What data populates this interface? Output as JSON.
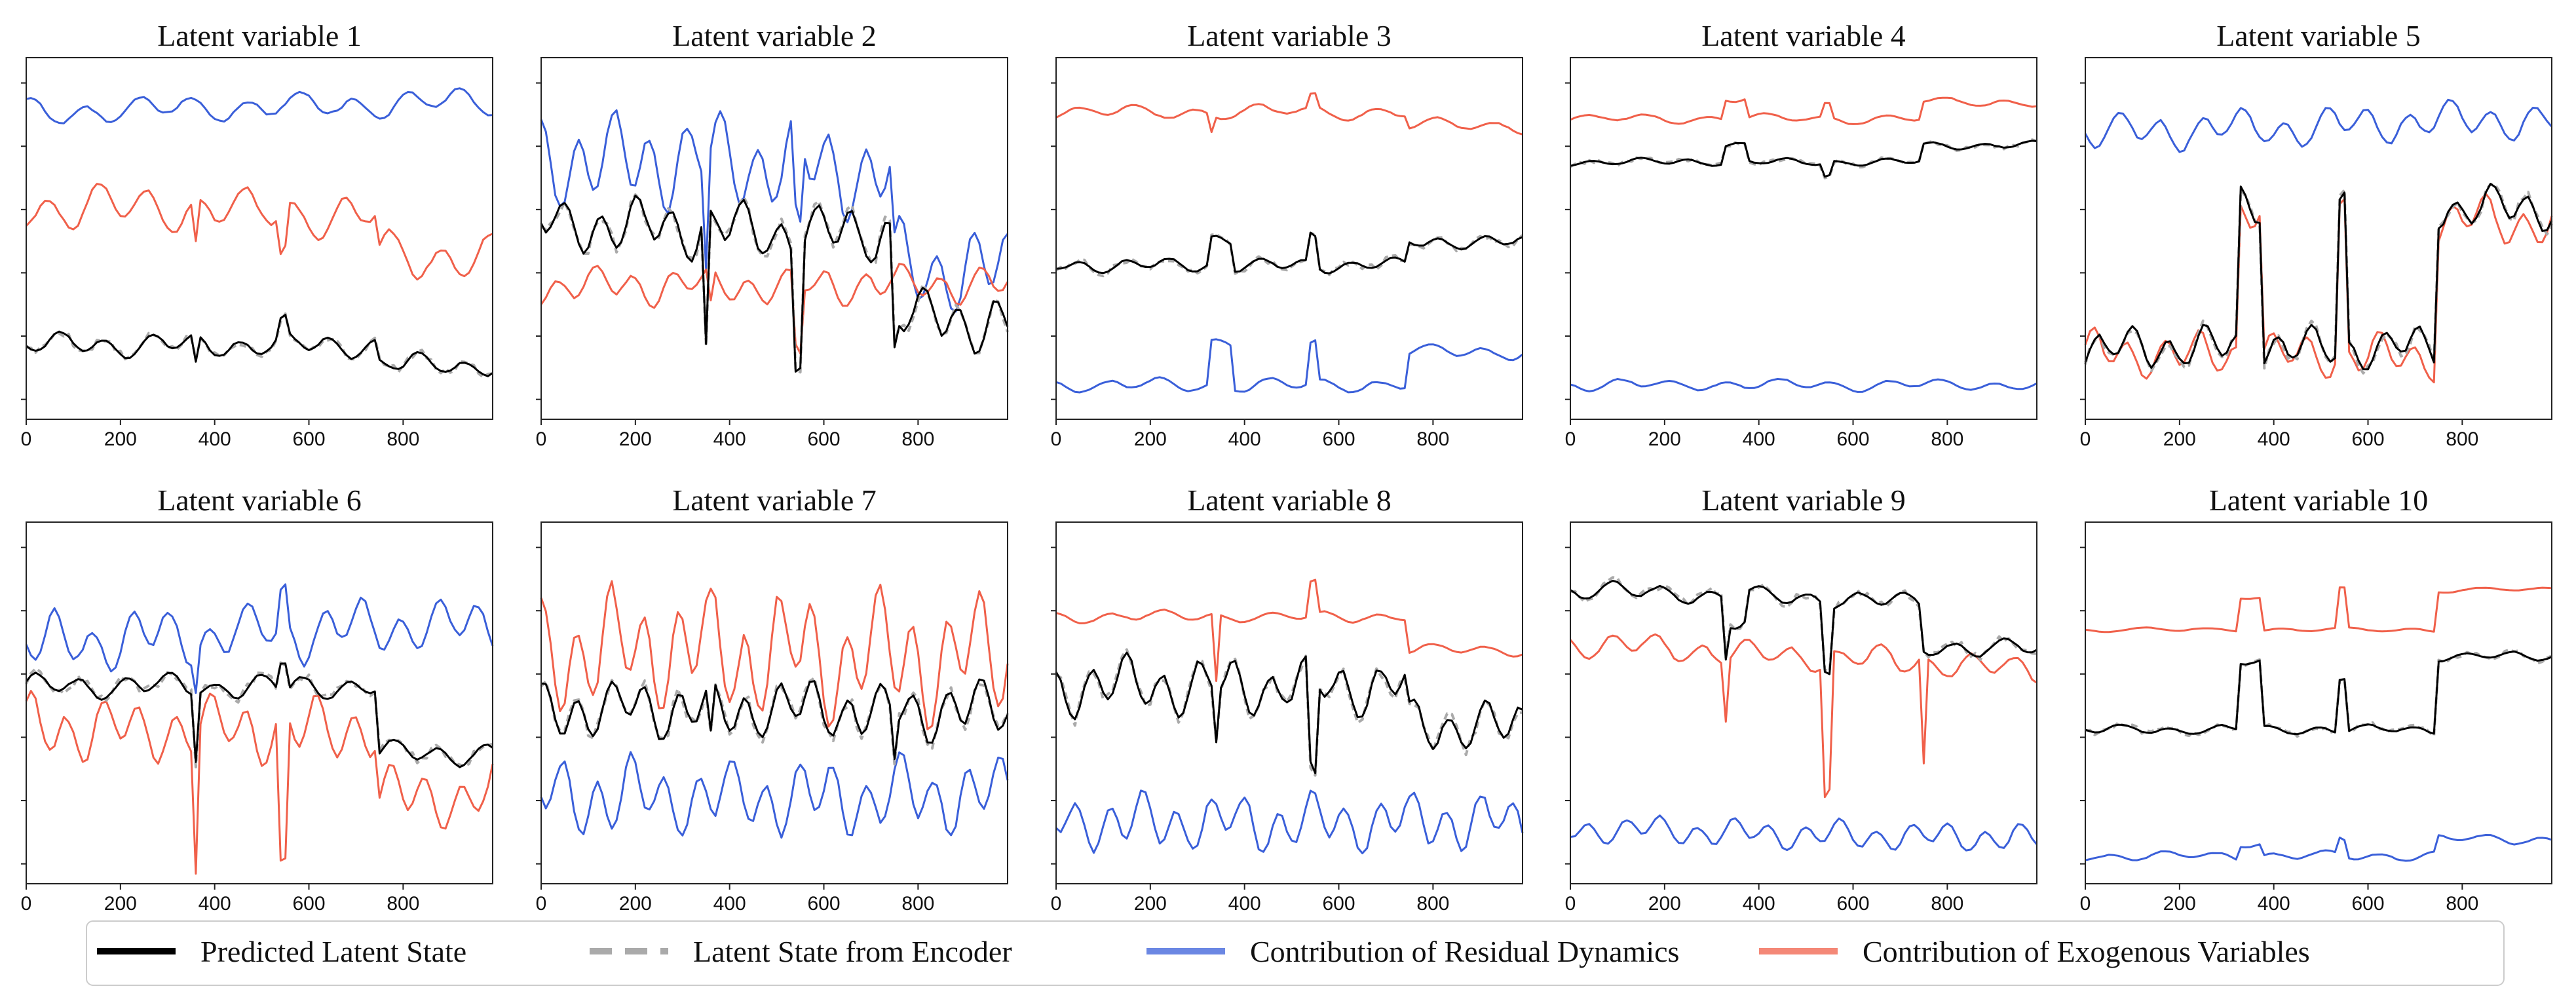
{
  "chart_data": {
    "type": "line",
    "figure_layout": "2x5 grid",
    "x_ticks": [
      0,
      200,
      400,
      600,
      800
    ],
    "xlim": [
      0,
      990
    ],
    "legend": {
      "placement": "bottom",
      "entries": [
        {
          "key": "predicted",
          "label": "Predicted Latent State",
          "color": "#000000",
          "style": "solid"
        },
        {
          "key": "encoder",
          "label": "Latent State from Encoder",
          "color": "#aaaaaa",
          "style": "dashed"
        },
        {
          "key": "residual",
          "label": "Contribution of Residual Dynamics",
          "color": "#3a5fd9",
          "style": "solid"
        },
        {
          "key": "exogenous",
          "label": "Contribution of Exogenous Variables",
          "color": "#f0604a",
          "style": "solid"
        }
      ]
    },
    "colors": {
      "predicted": "#000000",
      "encoder": "#aaaaaa",
      "residual": "#3a5fd9",
      "exogenous": "#f0604a"
    },
    "regime_change_points": [
      340,
      360,
      545,
      750
    ],
    "panels": [
      {
        "title": "Latent variable 1",
        "series": {
          "residual": {
            "level": 0.88,
            "amp": 0.03,
            "freq": 1.0,
            "ramp": 0.03
          },
          "exogenous": {
            "level": 0.6,
            "amp": 0.05,
            "freq": 1.1,
            "spikes": [
              [
                360,
                -0.12
              ],
              [
                545,
                -0.12
              ]
            ],
            "step_after": 750,
            "step": -0.12,
            "ramp": -0.04
          },
          "predicted": {
            "level": 0.18,
            "amp": 0.025,
            "freq": 1.2,
            "spikes": [
              [
                360,
                -0.08
              ],
              [
                545,
                0.05
              ]
            ],
            "step_after": 750,
            "step": -0.06
          },
          "encoder": {
            "offset": 0.0,
            "noise": 0.01
          }
        }
      },
      {
        "title": "Latent variable 2",
        "series": {
          "residual": {
            "level": 0.75,
            "amp": 0.1,
            "freq": 1.5,
            "spikes": [
              [
                350,
                -0.3
              ],
              [
                545,
                -0.25
              ]
            ],
            "step_after": 750,
            "step": -0.3,
            "ramp": -0.05
          },
          "exogenous": {
            "level": 0.36,
            "amp": 0.04,
            "freq": 1.4,
            "spikes": [
              [
                545,
                -0.2
              ],
              [
                360,
                -0.1
              ]
            ]
          },
          "predicted": {
            "level": 0.55,
            "amp": 0.06,
            "freq": 1.5,
            "spikes": [
              [
                350,
                -0.4
              ],
              [
                545,
                -0.35
              ],
              [
                750,
                -0.35
              ]
            ],
            "step_after": 760,
            "step": -0.25,
            "ramp": -0.05
          },
          "encoder": {
            "offset": 0.0,
            "noise": 0.02
          }
        }
      },
      {
        "title": "Latent variable 3",
        "series": {
          "residual": {
            "level": 0.06,
            "amp": 0.015,
            "freq": 1.0,
            "spikes": [
              [
                545,
                0.12
              ]
            ],
            "blocks": [
              [
                330,
                370,
                0.13
              ]
            ],
            "step_after": 750,
            "step": 0.1
          },
          "exogenous": {
            "level": 0.88,
            "amp": 0.015,
            "freq": 0.9,
            "spikes": [
              [
                545,
                0.04
              ],
              [
                330,
                -0.05
              ]
            ],
            "step_after": 750,
            "step": -0.04
          },
          "predicted": {
            "level": 0.42,
            "amp": 0.015,
            "freq": 1.2,
            "spikes": [
              [
                545,
                0.09
              ]
            ],
            "blocks": [
              [
                330,
                370,
                0.08
              ]
            ],
            "step_after": 750,
            "step": 0.07
          },
          "encoder": {
            "offset": 0.0,
            "noise": 0.01
          }
        }
      },
      {
        "title": "Latent variable 4",
        "series": {
          "residual": {
            "level": 0.06,
            "amp": 0.012,
            "freq": 1.0
          },
          "exogenous": {
            "level": 0.86,
            "amp": 0.01,
            "freq": 0.9,
            "spikes": [
              [
                545,
                0.04
              ]
            ],
            "blocks": [
              [
                330,
                370,
                0.06
              ]
            ],
            "step_after": 750,
            "step": 0.05
          },
          "predicted": {
            "level": 0.73,
            "amp": 0.008,
            "freq": 1.1,
            "spikes": [
              [
                545,
                -0.04
              ]
            ],
            "blocks": [
              [
                330,
                370,
                0.05
              ]
            ],
            "step_after": 750,
            "step": 0.05
          },
          "encoder": {
            "offset": 0.0,
            "noise": 0.006
          }
        }
      },
      {
        "title": "Latent variable 5",
        "series": {
          "residual": {
            "level": 0.82,
            "amp": 0.04,
            "freq": 1.3,
            "ramp": 0.04
          },
          "exogenous": {
            "level": 0.15,
            "amp": 0.05,
            "freq": 1.5,
            "blocks": [
              [
                330,
                370,
                0.45
              ]
            ],
            "spikes": [
              [
                545,
                0.45
              ]
            ],
            "step_after": 750,
            "step": 0.4
          },
          "predicted": {
            "level": 0.17,
            "amp": 0.045,
            "freq": 1.5,
            "blocks": [
              [
                330,
                370,
                0.45
              ]
            ],
            "spikes": [
              [
                545,
                0.45
              ]
            ],
            "step_after": 750,
            "step": 0.42
          },
          "encoder": {
            "offset": 0.0,
            "noise": 0.015
          }
        }
      },
      {
        "title": "Latent variable 6",
        "series": {
          "residual": {
            "level": 0.68,
            "amp": 0.06,
            "freq": 1.4,
            "spikes": [
              [
                545,
                0.1
              ],
              [
                360,
                -0.1
              ]
            ],
            "ramp": 0.06
          },
          "exogenous": {
            "level": 0.42,
            "amp": 0.07,
            "freq": 1.5,
            "spikes": [
              [
                360,
                -0.4
              ],
              [
                545,
                -0.45
              ]
            ],
            "step_after": 750,
            "step": -0.2
          },
          "predicted": {
            "level": 0.55,
            "amp": 0.025,
            "freq": 1.2,
            "spikes": [
              [
                360,
                -0.2
              ],
              [
                545,
                0.08
              ]
            ],
            "step_after": 750,
            "step": -0.2
          },
          "encoder": {
            "offset": 0.0,
            "noise": 0.015
          }
        }
      },
      {
        "title": "Latent variable 7",
        "series": {
          "residual": {
            "level": 0.22,
            "amp": 0.08,
            "freq": 1.6
          },
          "exogenous": {
            "level": 0.65,
            "amp": 0.13,
            "freq": 1.6
          },
          "predicted": {
            "level": 0.48,
            "amp": 0.06,
            "freq": 1.6,
            "spikes": [
              [
                360,
                -0.15
              ],
              [
                750,
                -0.12
              ]
            ]
          },
          "encoder": {
            "offset": 0.0,
            "noise": 0.02
          }
        }
      },
      {
        "title": "Latent variable 8",
        "series": {
          "residual": {
            "level": 0.14,
            "amp": 0.06,
            "freq": 1.6
          },
          "exogenous": {
            "level": 0.76,
            "amp": 0.012,
            "freq": 1.0,
            "spikes": [
              [
                340,
                -0.2
              ],
              [
                545,
                0.1
              ]
            ],
            "step_after": 750,
            "step": -0.1
          },
          "predicted": {
            "level": 0.55,
            "amp": 0.06,
            "freq": 1.5,
            "spikes": [
              [
                545,
                -0.3
              ],
              [
                340,
                -0.15
              ]
            ],
            "step_after": 750,
            "step": -0.12
          },
          "encoder": {
            "offset": 0.0,
            "noise": 0.02
          }
        }
      },
      {
        "title": "Latent variable 9",
        "series": {
          "residual": {
            "level": 0.12,
            "amp": 0.03,
            "freq": 1.5,
            "ramp": -0.03
          },
          "exogenous": {
            "level": 0.68,
            "amp": 0.03,
            "freq": 1.2,
            "spikes": [
              [
                330,
                -0.18
              ],
              [
                545,
                -0.4
              ],
              [
                750,
                -0.32
              ]
            ],
            "ramp": -0.08
          },
          "predicted": {
            "level": 0.84,
            "amp": 0.02,
            "freq": 1.1,
            "spikes": [
              [
                330,
                -0.1
              ],
              [
                545,
                -0.2
              ]
            ],
            "blocks": [
              [
                330,
                370,
                -0.08
              ]
            ],
            "step_after": 750,
            "step": -0.13,
            "ramp": -0.05
          },
          "encoder": {
            "offset": 0.0,
            "noise": 0.012
          }
        }
      },
      {
        "title": "Latent variable 10",
        "series": {
          "residual": {
            "level": 0.04,
            "amp": 0.01,
            "freq": 1.0,
            "blocks": [
              [
                330,
                370,
                0.04
              ]
            ],
            "spikes": [
              [
                545,
                0.05
              ]
            ],
            "step_after": 750,
            "step": 0.05
          },
          "exogenous": {
            "level": 0.72,
            "amp": 0.005,
            "freq": 0.8,
            "blocks": [
              [
                330,
                370,
                0.1
              ]
            ],
            "spikes": [
              [
                545,
                0.12
              ]
            ],
            "step_after": 750,
            "step": 0.12
          },
          "predicted": {
            "level": 0.42,
            "amp": 0.01,
            "freq": 1.1,
            "blocks": [
              [
                330,
                370,
                0.2
              ]
            ],
            "spikes": [
              [
                545,
                0.16
              ]
            ],
            "step_after": 750,
            "step": 0.22
          },
          "encoder": {
            "offset": 0.0,
            "noise": 0.008
          }
        }
      }
    ]
  }
}
